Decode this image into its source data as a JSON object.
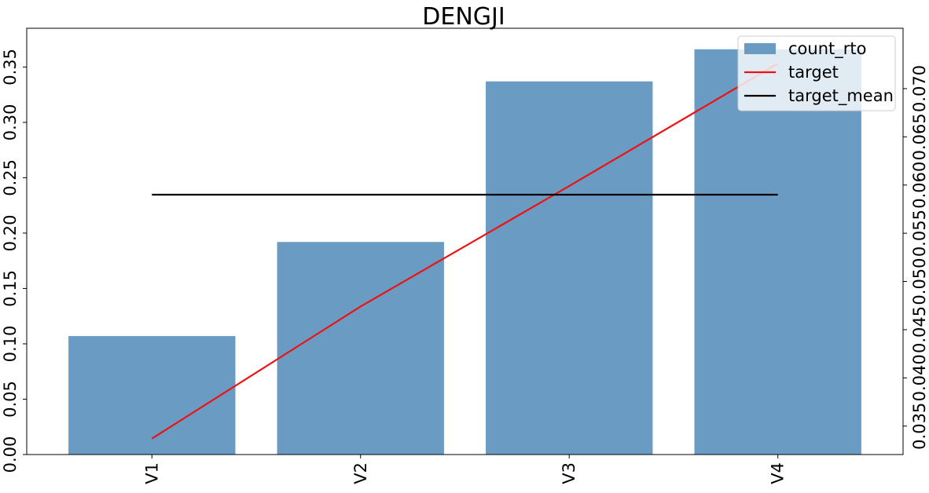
{
  "chart_data": {
    "type": "bar",
    "title": "DENGJI",
    "categories": [
      "V1",
      "V2",
      "V3",
      "V4"
    ],
    "series": [
      {
        "name": "count_rto",
        "kind": "bar",
        "axis": "left",
        "values": [
          0.107,
          0.192,
          0.337,
          0.366
        ],
        "color": "#6a9bc3"
      },
      {
        "name": "target",
        "kind": "line",
        "axis": "right",
        "values": [
          0.0337,
          0.0474,
          0.0599,
          0.0726
        ],
        "color": "#ee1111"
      },
      {
        "name": "target_mean",
        "kind": "line",
        "axis": "right",
        "values": [
          0.059,
          0.059,
          0.059,
          0.059
        ],
        "color": "#000000"
      }
    ],
    "left_ylim": [
      0.0,
      0.385
    ],
    "right_ylim": [
      0.03205,
      0.07626
    ],
    "left_yticks": [
      "0.00",
      "0.05",
      "0.10",
      "0.15",
      "0.20",
      "0.25",
      "0.30",
      "0.35"
    ],
    "right_yticks": [
      "0.035",
      "0.040",
      "0.045",
      "0.050",
      "0.055",
      "0.060",
      "0.065",
      "0.070"
    ],
    "legend_position": "top-right",
    "grid": false
  }
}
